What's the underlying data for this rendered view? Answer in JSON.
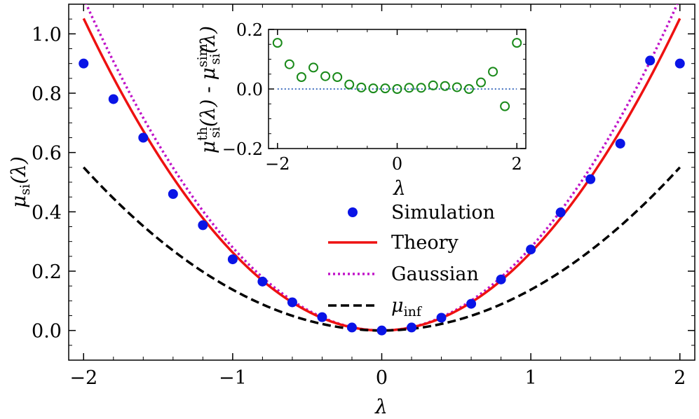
{
  "chart_data": [
    {
      "type": "line",
      "xlabel": "λ",
      "ylabel": "μsi(λ)",
      "ylabel_parts": {
        "mu": "μ",
        "sub": "si",
        "arg": "(λ)"
      },
      "xlim": [
        -2.1,
        2.1
      ],
      "ylim": [
        -0.1,
        1.1
      ],
      "x_ticks": [
        -2,
        -1,
        0,
        1,
        2
      ],
      "x_tick_labels": [
        "−2",
        "−1",
        "0",
        "1",
        "2"
      ],
      "y_ticks": [
        0.0,
        0.2,
        0.4,
        0.6,
        0.8,
        1.0
      ],
      "y_tick_labels": [
        "0.0",
        "0.2",
        "0.4",
        "0.6",
        "0.8",
        "1.0"
      ],
      "colors": {
        "simulation": "#0a14e6",
        "theory": "#ee1111",
        "gaussian": "#c014c8",
        "inf": "#000000"
      },
      "series": [
        {
          "name": "Simulation",
          "style": "markers",
          "x": [
            -2.0,
            -1.8,
            -1.6,
            -1.4,
            -1.2,
            -1.0,
            -0.8,
            -0.6,
            -0.4,
            -0.2,
            0.0,
            0.2,
            0.4,
            0.6,
            0.8,
            1.0,
            1.2,
            1.4,
            1.6,
            1.8,
            2.0
          ],
          "y": [
            0.9,
            0.78,
            0.65,
            0.46,
            0.355,
            0.24,
            0.165,
            0.095,
            0.045,
            0.01,
            0.0,
            0.01,
            0.043,
            0.09,
            0.172,
            0.273,
            0.398,
            0.51,
            0.63,
            0.91,
            0.9
          ]
        },
        {
          "name": "Theory",
          "style": "solid",
          "coef": 0.263
        },
        {
          "name": "Gaussian",
          "style": "dotted",
          "coef": 0.28
        },
        {
          "name": "μinf",
          "style": "dashed",
          "coef": 0.1375
        }
      ],
      "legend": {
        "position": "lower-center",
        "items": [
          {
            "label": "Simulation"
          },
          {
            "label": "Theory"
          },
          {
            "label": "Gaussian"
          },
          {
            "label_mu": "μ",
            "label_sub": "inf"
          }
        ]
      }
    },
    {
      "type": "scatter",
      "name": "inset",
      "xlabel": "λ",
      "ylabel_parts": {
        "mu": "μ",
        "sup_th": "th",
        "sup_sim": "sim",
        "sub": "si",
        "arg": "(λ)",
        "minus": " - "
      },
      "xlim": [
        -2.15,
        2.15
      ],
      "ylim": [
        -0.2,
        0.2
      ],
      "x_ticks": [
        -2,
        0,
        2
      ],
      "x_tick_labels": [
        "−2",
        "0",
        "2"
      ],
      "y_ticks": [
        -0.2,
        0.0,
        0.2
      ],
      "y_tick_labels": [
        "−0.2",
        "0.0",
        "0.2"
      ],
      "colors": {
        "points": "#1a8a1a",
        "zero_line": "#2a5fb8"
      },
      "series": [
        {
          "name": "residual",
          "x": [
            -2.0,
            -1.8,
            -1.6,
            -1.4,
            -1.2,
            -1.0,
            -0.8,
            -0.6,
            -0.4,
            -0.2,
            0.0,
            0.2,
            0.4,
            0.6,
            0.8,
            1.0,
            1.2,
            1.4,
            1.6,
            1.8,
            2.0
          ],
          "y": [
            0.155,
            0.083,
            0.04,
            0.072,
            0.043,
            0.04,
            0.015,
            0.005,
            0.002,
            0.002,
            0.0,
            0.004,
            0.004,
            0.012,
            0.01,
            0.006,
            0.0,
            0.022,
            0.058,
            -0.058,
            0.155
          ]
        }
      ],
      "reference_line_y": 0.0
    }
  ]
}
